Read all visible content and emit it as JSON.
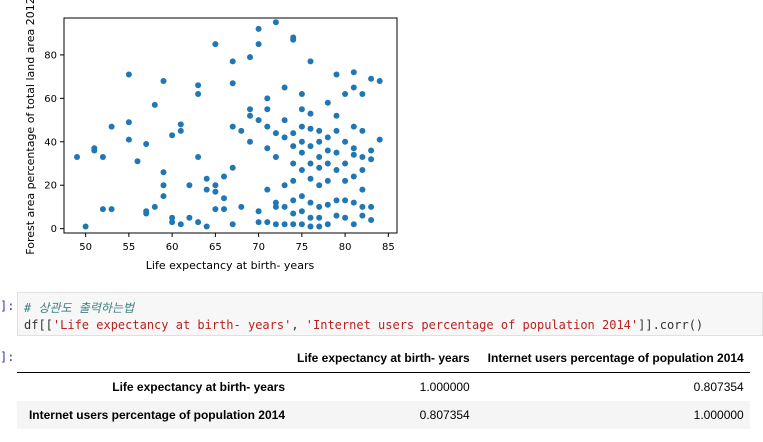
{
  "chart_data": {
    "type": "scatter",
    "xlabel": "Life expectancy at birth- years",
    "ylabel": "Forest area percentage of total land area 2012",
    "xlim": [
      47.5,
      86
    ],
    "ylim": [
      -2,
      97
    ],
    "xticks": [
      "50",
      "55",
      "60",
      "65",
      "70",
      "75",
      "80",
      "85"
    ],
    "yticks": [
      "0",
      "20",
      "40",
      "60",
      "80"
    ],
    "color": "#1f77b4",
    "points": [
      [
        49,
        33
      ],
      [
        50,
        1
      ],
      [
        51,
        36
      ],
      [
        51,
        37
      ],
      [
        52,
        33
      ],
      [
        52,
        9
      ],
      [
        53,
        47
      ],
      [
        53,
        9
      ],
      [
        55,
        71
      ],
      [
        55,
        49
      ],
      [
        55,
        41
      ],
      [
        56,
        31
      ],
      [
        57,
        7
      ],
      [
        57,
        8
      ],
      [
        57,
        39
      ],
      [
        58,
        57
      ],
      [
        58,
        10
      ],
      [
        59,
        68
      ],
      [
        59,
        26
      ],
      [
        59,
        20
      ],
      [
        59,
        15
      ],
      [
        60,
        43
      ],
      [
        60,
        5
      ],
      [
        60,
        3
      ],
      [
        61,
        48
      ],
      [
        61,
        45
      ],
      [
        61,
        2
      ],
      [
        62,
        20
      ],
      [
        62,
        5
      ],
      [
        63,
        66
      ],
      [
        63,
        62
      ],
      [
        63,
        33
      ],
      [
        63,
        3
      ],
      [
        64,
        23
      ],
      [
        64,
        18
      ],
      [
        64,
        1
      ],
      [
        65,
        85
      ],
      [
        65,
        20
      ],
      [
        65,
        17
      ],
      [
        65,
        9
      ],
      [
        66,
        24
      ],
      [
        66,
        14
      ],
      [
        66,
        9
      ],
      [
        67,
        77
      ],
      [
        67,
        67
      ],
      [
        67,
        47
      ],
      [
        67,
        28
      ],
      [
        67,
        2
      ],
      [
        68,
        45
      ],
      [
        68,
        10
      ],
      [
        69,
        79
      ],
      [
        69,
        55
      ],
      [
        69,
        52
      ],
      [
        69,
        40
      ],
      [
        70,
        92
      ],
      [
        70,
        85
      ],
      [
        70,
        50
      ],
      [
        70,
        8
      ],
      [
        70,
        3
      ],
      [
        71,
        60
      ],
      [
        71,
        55
      ],
      [
        71,
        47
      ],
      [
        71,
        37
      ],
      [
        71,
        18
      ],
      [
        71,
        3
      ],
      [
        72,
        95
      ],
      [
        72,
        44
      ],
      [
        72,
        33
      ],
      [
        72,
        12
      ],
      [
        72,
        10
      ],
      [
        72,
        2
      ],
      [
        73,
        65
      ],
      [
        73,
        50
      ],
      [
        73,
        42
      ],
      [
        73,
        20
      ],
      [
        73,
        10
      ],
      [
        73,
        2
      ],
      [
        74,
        88
      ],
      [
        74,
        87
      ],
      [
        74,
        44
      ],
      [
        74,
        38
      ],
      [
        74,
        30
      ],
      [
        74,
        22
      ],
      [
        74,
        13
      ],
      [
        74,
        7
      ],
      [
        74,
        2
      ],
      [
        75,
        62
      ],
      [
        75,
        55
      ],
      [
        75,
        47
      ],
      [
        75,
        40
      ],
      [
        75,
        35
      ],
      [
        75,
        27
      ],
      [
        75,
        15
      ],
      [
        75,
        8
      ],
      [
        75,
        2
      ],
      [
        76,
        77
      ],
      [
        76,
        53
      ],
      [
        76,
        46
      ],
      [
        76,
        38
      ],
      [
        76,
        30
      ],
      [
        76,
        23
      ],
      [
        76,
        12
      ],
      [
        76,
        5
      ],
      [
        76,
        1
      ],
      [
        77,
        45
      ],
      [
        77,
        40
      ],
      [
        77,
        33
      ],
      [
        77,
        28
      ],
      [
        77,
        20
      ],
      [
        77,
        10
      ],
      [
        77,
        5
      ],
      [
        77,
        1
      ],
      [
        78,
        58
      ],
      [
        78,
        42
      ],
      [
        78,
        36
      ],
      [
        78,
        30
      ],
      [
        78,
        22
      ],
      [
        78,
        11
      ],
      [
        78,
        2
      ],
      [
        79,
        71
      ],
      [
        79,
        52
      ],
      [
        79,
        45
      ],
      [
        79,
        35
      ],
      [
        79,
        27
      ],
      [
        79,
        13
      ],
      [
        79,
        6
      ],
      [
        80,
        62
      ],
      [
        80,
        40
      ],
      [
        80,
        30
      ],
      [
        80,
        22
      ],
      [
        80,
        13
      ],
      [
        80,
        5
      ],
      [
        81,
        72
      ],
      [
        81,
        65
      ],
      [
        81,
        47
      ],
      [
        81,
        37
      ],
      [
        81,
        34
      ],
      [
        81,
        24
      ],
      [
        81,
        12
      ],
      [
        81,
        2
      ],
      [
        82,
        62
      ],
      [
        82,
        45
      ],
      [
        82,
        33
      ],
      [
        82,
        27
      ],
      [
        82,
        18
      ],
      [
        82,
        10
      ],
      [
        82,
        6
      ],
      [
        83,
        69
      ],
      [
        83,
        36
      ],
      [
        83,
        32
      ],
      [
        83,
        10
      ],
      [
        83,
        4
      ],
      [
        84,
        68
      ],
      [
        84,
        41
      ]
    ]
  },
  "code_cell": {
    "prompt": "]:",
    "comment": "# 상관도 출력하는법",
    "code_prefix": "df[[",
    "arg1": "'Life expectancy at birth- years'",
    "sep": ", ",
    "arg2": "'Internet users percentage of population 2014'",
    "code_suffix": "]].corr()"
  },
  "output": {
    "prompt": "]:",
    "columns": [
      "Life expectancy at birth- years",
      "Internet users percentage of population 2014"
    ],
    "rows": [
      {
        "label": "Life expectancy at birth- years",
        "values": [
          "1.000000",
          "0.807354"
        ]
      },
      {
        "label": "Internet users percentage of population 2014",
        "values": [
          "0.807354",
          "1.000000"
        ]
      }
    ]
  }
}
